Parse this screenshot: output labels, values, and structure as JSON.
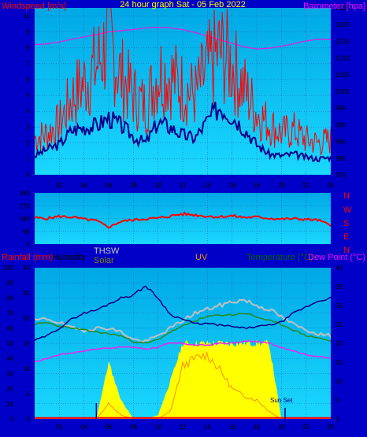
{
  "colors": {
    "background": "#0000c8",
    "plot_top": "#00a8e6",
    "plot_bottom": "#1ad8ff",
    "grid": "#1a5aa8",
    "axis_text": "#000000",
    "windspeed_label": "#ff0000",
    "barometer_label": "#ff00ff",
    "title": "#ffff00",
    "gust": "#ff0000",
    "avg_wind": "#00008b",
    "barometer": "#dd22dd",
    "direction": "#ff0000",
    "compass": "#ff0000",
    "rain_label": "#ff0000",
    "humidity_label": "#000000",
    "thsw_label": "#c8c8c8",
    "solar_label": "#808000",
    "uv_label": "#ff8c00",
    "temp_label": "#006400",
    "dew_label": "#ff00ff",
    "humidity": "#000080",
    "thsw": "#c0c0c0",
    "temperature": "#228b22",
    "dewpoint": "#ee22ee",
    "solar": "#ffff00",
    "uv": "#ff8c00",
    "rain": "#ff0000",
    "sunset": "#000080"
  },
  "top_panel": {
    "title": "24 hour graph Sat - 05 Feb 2022",
    "left_label": "Windspeed [m/s]",
    "right_label": "Barometer [hpa]",
    "left_ticks": [
      "0",
      "1",
      "2",
      "3",
      "4",
      "5",
      "6",
      "7",
      "8",
      "9",
      "10"
    ],
    "right_ticks": [
      "975",
      "980",
      "985",
      "990",
      "995",
      "1000",
      "1005",
      "1010",
      "1015",
      "1020",
      "1025"
    ],
    "x_ticks": [
      "02",
      "04",
      "06",
      "08",
      "10",
      "12",
      "14",
      "16",
      "18",
      "20",
      "22",
      "00"
    ]
  },
  "mid_panel": {
    "ticks": [
      "0",
      "90",
      "180",
      "270",
      "360"
    ],
    "compass": [
      "N",
      "W",
      "S",
      "E",
      "N"
    ]
  },
  "bottom_panel": {
    "rain_label": "Rainfall (mm)",
    "humidity_label": "Humidity",
    "thsw_label": "THSW",
    "solar_label": "Solar",
    "uv_label": "UV",
    "temp_label": "Temperature (°C)",
    "dew_label": "Dew Point (°C)",
    "humidity_ticks": [
      "0",
      "10",
      "20",
      "30",
      "40",
      "50",
      "60",
      "70",
      "80",
      "90",
      "100"
    ],
    "rain_ticks": [
      "0",
      "5",
      "10",
      "15",
      "20",
      "25",
      "30"
    ],
    "temp_ticks": [
      "0",
      "5",
      "10",
      "15",
      "20",
      "25",
      "30",
      "35",
      "40"
    ],
    "x_ticks": [
      "02",
      "04",
      "06",
      "08",
      "10",
      "12",
      "14",
      "16",
      "18",
      "20",
      "22",
      "00"
    ],
    "annotation": "Sun Set"
  },
  "chart_data": [
    {
      "type": "line",
      "title": "24 hour graph Sat - 05 Feb 2022",
      "xlabel": "",
      "ylabel": "Windspeed [m/s]",
      "y2label": "Barometer [hpa]",
      "ylim": [
        0,
        10.5
      ],
      "y2lim": [
        975,
        1025
      ],
      "x": [
        0,
        1,
        2,
        3,
        4,
        5,
        6,
        7,
        8,
        9,
        10,
        11,
        12,
        13,
        14,
        15,
        16,
        17,
        18,
        19,
        20,
        21,
        22,
        23,
        24
      ],
      "series": [
        {
          "name": "gust",
          "axis": "left",
          "values": [
            2.3,
            2.6,
            3.2,
            4.8,
            5.8,
            6.8,
            8.6,
            6.2,
            5.0,
            4.3,
            6.5,
            6.2,
            5.5,
            5.0,
            6.6,
            7.8,
            6.9,
            5.4,
            3.9,
            3.2,
            2.6,
            2.8,
            2.2,
            2.0,
            2.2
          ]
        },
        {
          "name": "avg",
          "axis": "left",
          "values": [
            1.2,
            1.6,
            1.9,
            2.8,
            3.0,
            3.1,
            3.6,
            3.1,
            2.4,
            2.0,
            3.3,
            3.0,
            2.5,
            2.3,
            3.4,
            4.3,
            3.7,
            2.9,
            1.9,
            1.3,
            1.2,
            1.3,
            1.1,
            1.0,
            1.1
          ]
        },
        {
          "name": "barometer",
          "axis": "right",
          "values": [
            1014.0,
            1014.2,
            1014.8,
            1015.6,
            1016.3,
            1017.0,
            1017.8,
            1018.2,
            1018.5,
            1019.0,
            1019.2,
            1019.0,
            1018.5,
            1017.6,
            1016.6,
            1015.4,
            1014.4,
            1013.3,
            1012.7,
            1012.9,
            1013.5,
            1014.3,
            1015.1,
            1015.6,
            1015.5
          ]
        }
      ]
    },
    {
      "type": "line",
      "xlabel": "",
      "ylabel": "",
      "ylim": [
        0,
        360
      ],
      "x": [
        0,
        1,
        2,
        3,
        4,
        5,
        6,
        7,
        8,
        9,
        10,
        11,
        12,
        13,
        14,
        15,
        16,
        17,
        18,
        19,
        20,
        21,
        22,
        23,
        24
      ],
      "series": [
        {
          "name": "direction",
          "values": [
            185,
            180,
            195,
            190,
            175,
            165,
            118,
            160,
            170,
            178,
            182,
            198,
            212,
            205,
            196,
            192,
            198,
            188,
            190,
            182,
            176,
            178,
            174,
            168,
            132
          ]
        }
      ]
    },
    {
      "type": "line",
      "xlabel": "",
      "ylabel": "Humidity",
      "ylim": [
        0,
        100
      ],
      "x": [
        0,
        1,
        2,
        3,
        4,
        5,
        6,
        7,
        8,
        9,
        10,
        11,
        12,
        13,
        14,
        15,
        16,
        17,
        18,
        19,
        20,
        21,
        22,
        23,
        24
      ],
      "series": [
        {
          "name": "Humidity",
          "axis": "humidity",
          "values": [
            52,
            55,
            60,
            66,
            70,
            72,
            76,
            80,
            82,
            88,
            80,
            69,
            66,
            63,
            63,
            62,
            61,
            60,
            61,
            62,
            64,
            70,
            74,
            78,
            80
          ]
        },
        {
          "name": "THSW",
          "axis": "temperature",
          "values": [
            26,
            26.5,
            25.5,
            24,
            23.5,
            24,
            24,
            23,
            21,
            20.5,
            22,
            24,
            26,
            28,
            29,
            30,
            31,
            31.5,
            30,
            29,
            27,
            25,
            23.5,
            22.5,
            22
          ]
        },
        {
          "name": "Temperature",
          "axis": "temperature",
          "values": [
            25,
            25.5,
            24.5,
            24,
            23.5,
            23,
            22.5,
            22,
            20.5,
            20,
            21,
            23,
            24.5,
            26,
            27,
            27.5,
            27.5,
            28,
            27,
            26,
            25,
            23.5,
            22,
            21.5,
            20.5
          ]
        },
        {
          "name": "Dew Point",
          "axis": "temperature",
          "values": [
            15,
            16,
            17,
            17.5,
            18,
            18.5,
            18.8,
            19,
            19,
            18.5,
            19,
            20,
            20,
            19.5,
            19.5,
            20,
            20,
            20.5,
            20.5,
            20,
            19,
            18,
            17,
            16.5,
            16
          ]
        },
        {
          "name": "Solar",
          "axis": "temperature",
          "values": [
            0,
            0,
            0,
            0,
            0,
            0,
            15,
            5,
            0,
            0,
            1,
            10,
            20,
            20,
            20,
            20,
            20,
            20,
            20,
            20,
            0,
            0,
            0,
            0,
            0
          ]
        },
        {
          "name": "UV",
          "axis": "temperature",
          "values": [
            0,
            0,
            0,
            0,
            0,
            0,
            4,
            1,
            0,
            0,
            0,
            2,
            14,
            16,
            17,
            13,
            8,
            6,
            5,
            2,
            0,
            0,
            0,
            0,
            0
          ]
        },
        {
          "name": "Rainfall",
          "axis": "rain",
          "values": [
            0.2,
            0.2,
            0.2,
            0.2,
            0.2,
            0.2,
            0.2,
            0.2,
            0.2,
            0.2,
            0.2,
            0.2,
            0.2,
            0.2,
            0.2,
            0.2,
            0.2,
            0.2,
            0.2,
            0.2,
            0.2,
            0.2,
            0.2,
            0.2,
            0.2
          ]
        }
      ],
      "y2lim_rain": [
        0,
        30
      ],
      "y2lim_temperature": [
        0,
        40
      ]
    }
  ]
}
